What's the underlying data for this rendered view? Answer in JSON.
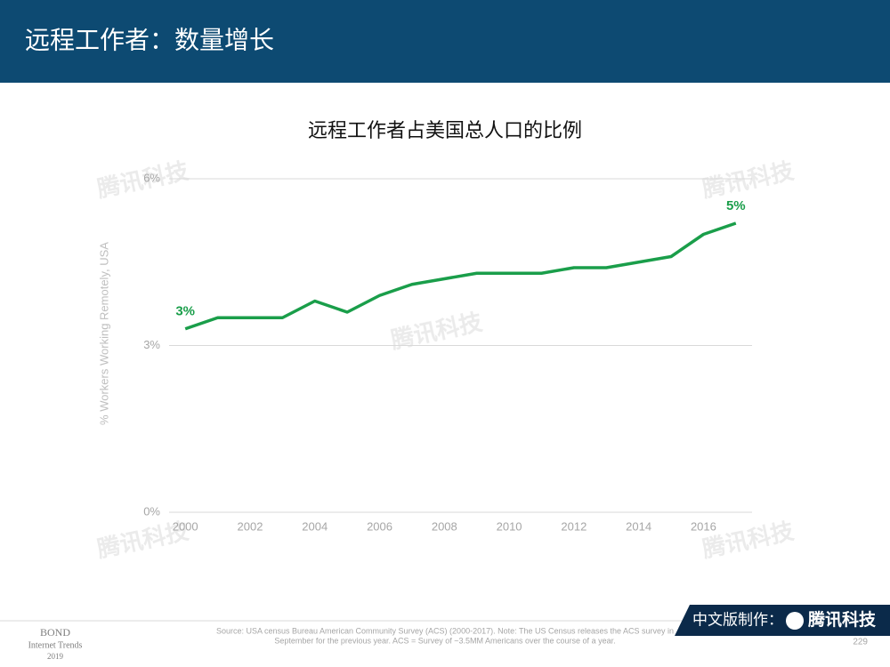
{
  "header": {
    "title": "远程工作者：数量增长"
  },
  "chart_data": {
    "type": "line",
    "title": "远程工作者占美国总人口的比例",
    "ylabel": "% Workers Working Remotely, USA",
    "x": [
      2000,
      2001,
      2002,
      2003,
      2004,
      2005,
      2006,
      2007,
      2008,
      2009,
      2010,
      2011,
      2012,
      2013,
      2014,
      2015,
      2016,
      2017
    ],
    "values": [
      3.3,
      3.5,
      3.5,
      3.5,
      3.8,
      3.6,
      3.9,
      4.1,
      4.2,
      4.3,
      4.3,
      4.3,
      4.4,
      4.4,
      4.5,
      4.6,
      5.0,
      5.2
    ],
    "value_labels": [
      "3%",
      null,
      null,
      null,
      null,
      null,
      null,
      null,
      null,
      null,
      null,
      null,
      null,
      null,
      null,
      null,
      null,
      "5%"
    ],
    "color": "#1a9e4a",
    "xlim": [
      1999.5,
      2017.5
    ],
    "xticks": [
      2000,
      2002,
      2004,
      2006,
      2008,
      2010,
      2012,
      2014,
      2016
    ],
    "ylim": [
      0,
      6
    ],
    "yticks": [
      {
        "value": 0,
        "label": "0%"
      },
      {
        "value": 3,
        "label": "3%"
      },
      {
        "value": 6,
        "label": "6%"
      }
    ],
    "grid": true
  },
  "footer": {
    "brand": "BOND",
    "report": "Internet Trends",
    "year": "2019",
    "source": [
      "Source: USA census Bureau American Community Survey (ACS) (2000-2017).  Note: The US Census releases the ACS survey in",
      "September for the previous year.  ACS = Survey of ~3.5MM Americans over the course of a year."
    ],
    "credit": "中文版制作：",
    "logo": "腾讯科技",
    "watermark": "腾讯科技",
    "page": "229"
  }
}
